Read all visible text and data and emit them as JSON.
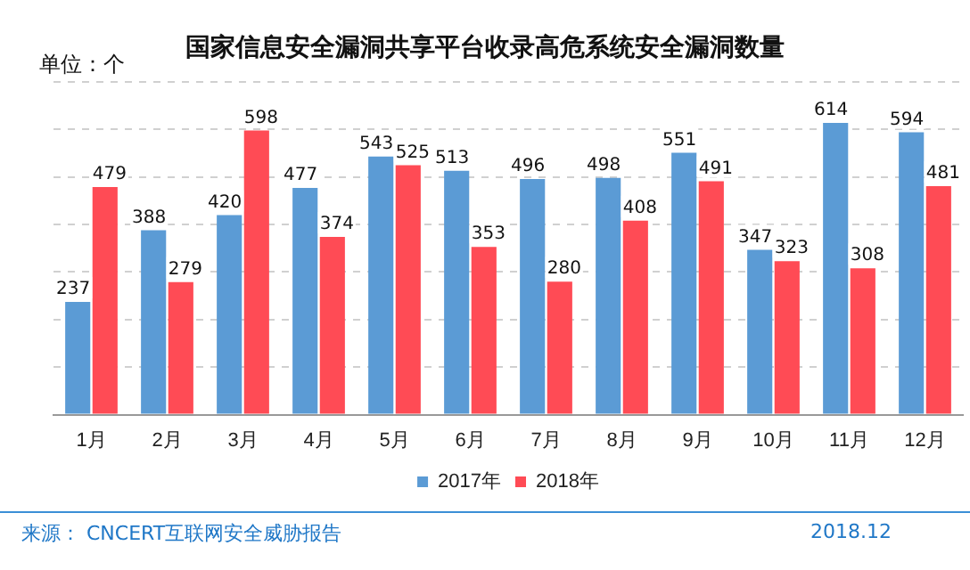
{
  "chart_data": {
    "type": "bar",
    "title": "国家信息安全漏洞共享平台收录高危系统安全漏洞数量",
    "ylabel": "单位：个",
    "categories": [
      "1月",
      "2月",
      "3月",
      "4月",
      "5月",
      "6月",
      "7月",
      "8月",
      "9月",
      "10月",
      "11月",
      "12月"
    ],
    "series": [
      {
        "name": "2017年",
        "color": "#5b9bd5",
        "values": [
          237,
          388,
          420,
          477,
          543,
          513,
          496,
          498,
          551,
          347,
          614,
          594
        ]
      },
      {
        "name": "2018年",
        "color": "#ff4b55",
        "values": [
          479,
          279,
          598,
          374,
          525,
          353,
          280,
          408,
          491,
          323,
          308,
          481
        ]
      }
    ],
    "ylim": [
      0,
      700
    ],
    "yticks": [
      {
        "value": 0,
        "label": null
      },
      {
        "value": 100,
        "label": null
      },
      {
        "value": 200,
        "label": null
      },
      {
        "value": 300,
        "label": null
      },
      {
        "value": 400,
        "label": null
      },
      {
        "value": 500,
        "label": null
      },
      {
        "value": 600,
        "label": null
      },
      {
        "value": 700,
        "label": null
      }
    ],
    "tick_labels": "x",
    "grid": "y",
    "legend": "bottom",
    "data_labels": true,
    "annotations": [
      "来源： CNCERT互联网安全威胁报告",
      "2018.12"
    ]
  }
}
